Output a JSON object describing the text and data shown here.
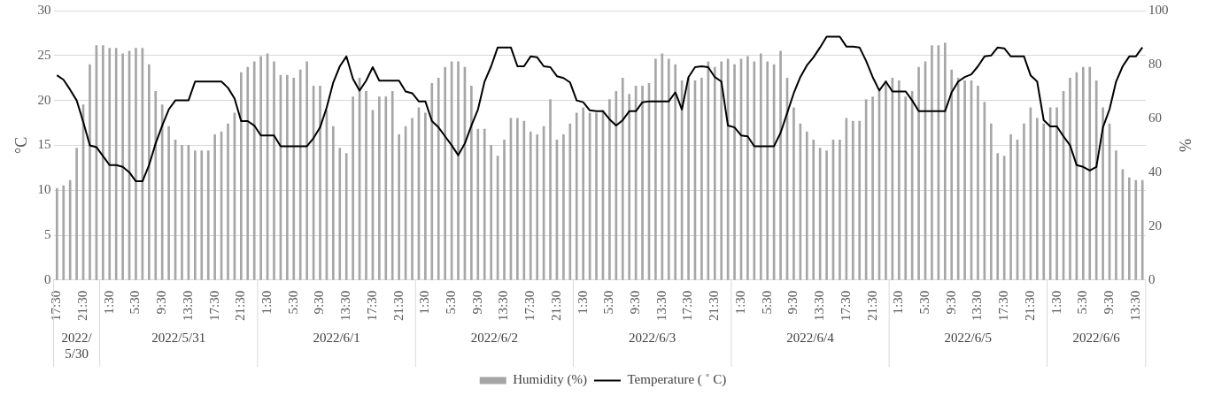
{
  "chart_data": {
    "type": "bar",
    "ylabel": "°C",
    "y2label": "%",
    "categories": [
      "17:30",
      null,
      null,
      null,
      "21:30",
      null,
      null,
      null,
      "1:30",
      null,
      null,
      null,
      "5:30",
      null,
      null,
      null,
      "9:30",
      null,
      null,
      null,
      "13:30",
      null,
      null,
      null,
      "17:30",
      null,
      null,
      null,
      "21:30",
      null,
      null,
      null,
      "1:30",
      null,
      null,
      null,
      "5:30",
      null,
      null,
      null,
      "9:30",
      null,
      null,
      null,
      "13:30",
      null,
      null,
      null,
      "17:30",
      null,
      null,
      null,
      "21:30",
      null,
      null,
      null,
      "1:30",
      null,
      null,
      null,
      "5:30",
      null,
      null,
      null,
      "9:30",
      null,
      null,
      null,
      "13:30",
      null,
      null,
      null,
      "17:30",
      null,
      null,
      null,
      "21:30",
      null,
      null,
      null,
      "1:30",
      null,
      null,
      null,
      "5:30",
      null,
      null,
      null,
      "9:30",
      null,
      null,
      null,
      "13:30",
      null,
      null,
      null,
      "17:30",
      null,
      null,
      null,
      "21:30",
      null,
      null,
      null,
      "1:30",
      null,
      null,
      null,
      "5:30",
      null,
      null,
      null,
      "9:30",
      null,
      null,
      null,
      "13:30",
      null,
      null,
      null,
      "17:30",
      null,
      null,
      null,
      "21:30",
      null,
      null,
      null,
      "1:30",
      null,
      null,
      null,
      "5:30",
      null,
      null,
      null,
      "9:30",
      null,
      null,
      null,
      "13:30",
      null,
      null,
      null,
      "17:30",
      null,
      null,
      null,
      "21:30",
      null,
      null,
      null,
      "1:30",
      null,
      null,
      null,
      "5:30",
      null,
      null,
      null,
      "9:30",
      null,
      null,
      null,
      "13:30",
      null
    ],
    "series": [
      {
        "name": "Humidity (%)",
        "axis": "y2",
        "color": "#a6a6a6",
        "values": [
          34,
          35,
          37,
          49,
          65,
          80,
          87,
          87,
          86,
          86,
          84,
          85,
          86,
          86,
          80,
          70,
          65,
          57,
          52,
          50,
          50,
          48,
          48,
          48,
          54,
          55,
          58,
          62,
          77,
          79,
          81,
          83,
          84,
          81,
          76,
          76,
          75,
          78,
          81,
          72,
          72,
          63,
          57,
          49,
          47,
          68,
          75,
          70,
          63,
          68,
          68,
          70,
          54,
          57,
          60,
          64,
          62,
          73,
          75,
          79,
          81,
          81,
          79,
          72,
          56,
          56,
          50,
          46,
          52,
          60,
          60,
          59,
          55,
          54,
          57,
          67,
          52,
          54,
          58,
          62,
          64,
          62,
          62,
          63,
          67,
          70,
          75,
          69,
          72,
          72,
          73,
          82,
          84,
          82,
          80,
          74,
          75,
          74,
          75,
          81,
          79,
          81,
          82,
          80,
          82,
          83,
          81,
          84,
          81,
          80,
          85,
          75,
          64,
          58,
          55,
          52,
          49,
          48,
          52,
          52,
          60,
          59,
          59,
          67,
          68,
          70,
          74,
          75,
          74,
          68,
          70,
          79,
          81,
          87,
          87,
          88,
          78,
          75,
          74,
          74,
          72,
          66,
          58,
          47,
          46,
          54,
          52,
          58,
          64,
          60,
          58,
          64,
          64,
          70,
          75,
          77,
          79,
          79,
          74,
          64,
          58,
          48,
          41,
          38,
          37,
          37
        ]
      },
      {
        "name": "Temperature ( ˚ C)",
        "type": "line",
        "color": "#000000",
        "values": [
          22.8,
          22.3,
          21.2,
          20,
          17.6,
          15,
          14.8,
          13.8,
          12.8,
          12.8,
          12.6,
          12,
          11,
          11,
          12.8,
          15.2,
          17.2,
          19,
          20,
          20,
          20,
          22.1,
          22.1,
          22.1,
          22.1,
          22.1,
          21.4,
          20.2,
          17.7,
          17.7,
          17.2,
          16.1,
          16.1,
          16.1,
          14.9,
          14.9,
          14.9,
          14.9,
          14.9,
          15.8,
          17,
          19.2,
          22,
          23.8,
          24.9,
          22.4,
          21.1,
          22.2,
          23.7,
          22.2,
          22.2,
          22.2,
          22.2,
          21,
          20.8,
          19.9,
          19.9,
          17.7,
          17,
          16,
          15,
          13.9,
          15.2,
          17.2,
          19,
          22.1,
          23.8,
          25.9,
          25.9,
          25.9,
          23.8,
          23.8,
          24.9,
          24.8,
          23.8,
          23.7,
          22.7,
          22.5,
          22,
          20,
          19.8,
          18.9,
          18.8,
          18.8,
          17.9,
          17.2,
          17.8,
          18.8,
          18.8,
          19.8,
          19.9,
          19.9,
          19.9,
          19.9,
          20.9,
          19,
          22.6,
          23.7,
          23.8,
          23.7,
          22.6,
          22.1,
          17.2,
          17,
          16.1,
          16,
          14.9,
          14.9,
          14.9,
          14.9,
          16.4,
          18.6,
          20.8,
          22.6,
          23.9,
          24.8,
          25.9,
          27.1,
          27.1,
          27.1,
          26,
          26,
          25.9,
          24.4,
          22.6,
          21.1,
          22.1,
          21,
          21,
          21,
          20,
          18.8,
          18.8,
          18.8,
          18.8,
          18.8,
          20.9,
          22.1,
          22.6,
          22.9,
          23.8,
          24.9,
          25,
          25.9,
          25.8,
          24.9,
          24.9,
          24.9,
          22.8,
          22.1,
          17.8,
          17.1,
          17.1,
          16,
          15,
          12.8,
          12.6,
          12.2,
          12.6,
          17,
          19,
          22.1,
          23.8,
          24.9,
          24.9,
          25.9
        ]
      }
    ],
    "ylim": [
      0,
      30
    ],
    "yticks": [
      0,
      5,
      10,
      15,
      20,
      25,
      30
    ],
    "y2lim": [
      0,
      100
    ],
    "y2ticks": [
      0,
      20,
      40,
      60,
      80,
      100
    ],
    "grid": "y",
    "legend": "bottom",
    "marker": "none",
    "line_style": "solid",
    "annotations": [
      "2022/5/30",
      "2022/5/31",
      "2022/6/1",
      "2022/6/2",
      "2022/6/3",
      "2022/6/4",
      "2022/6/5",
      "2022/6/6"
    ]
  }
}
